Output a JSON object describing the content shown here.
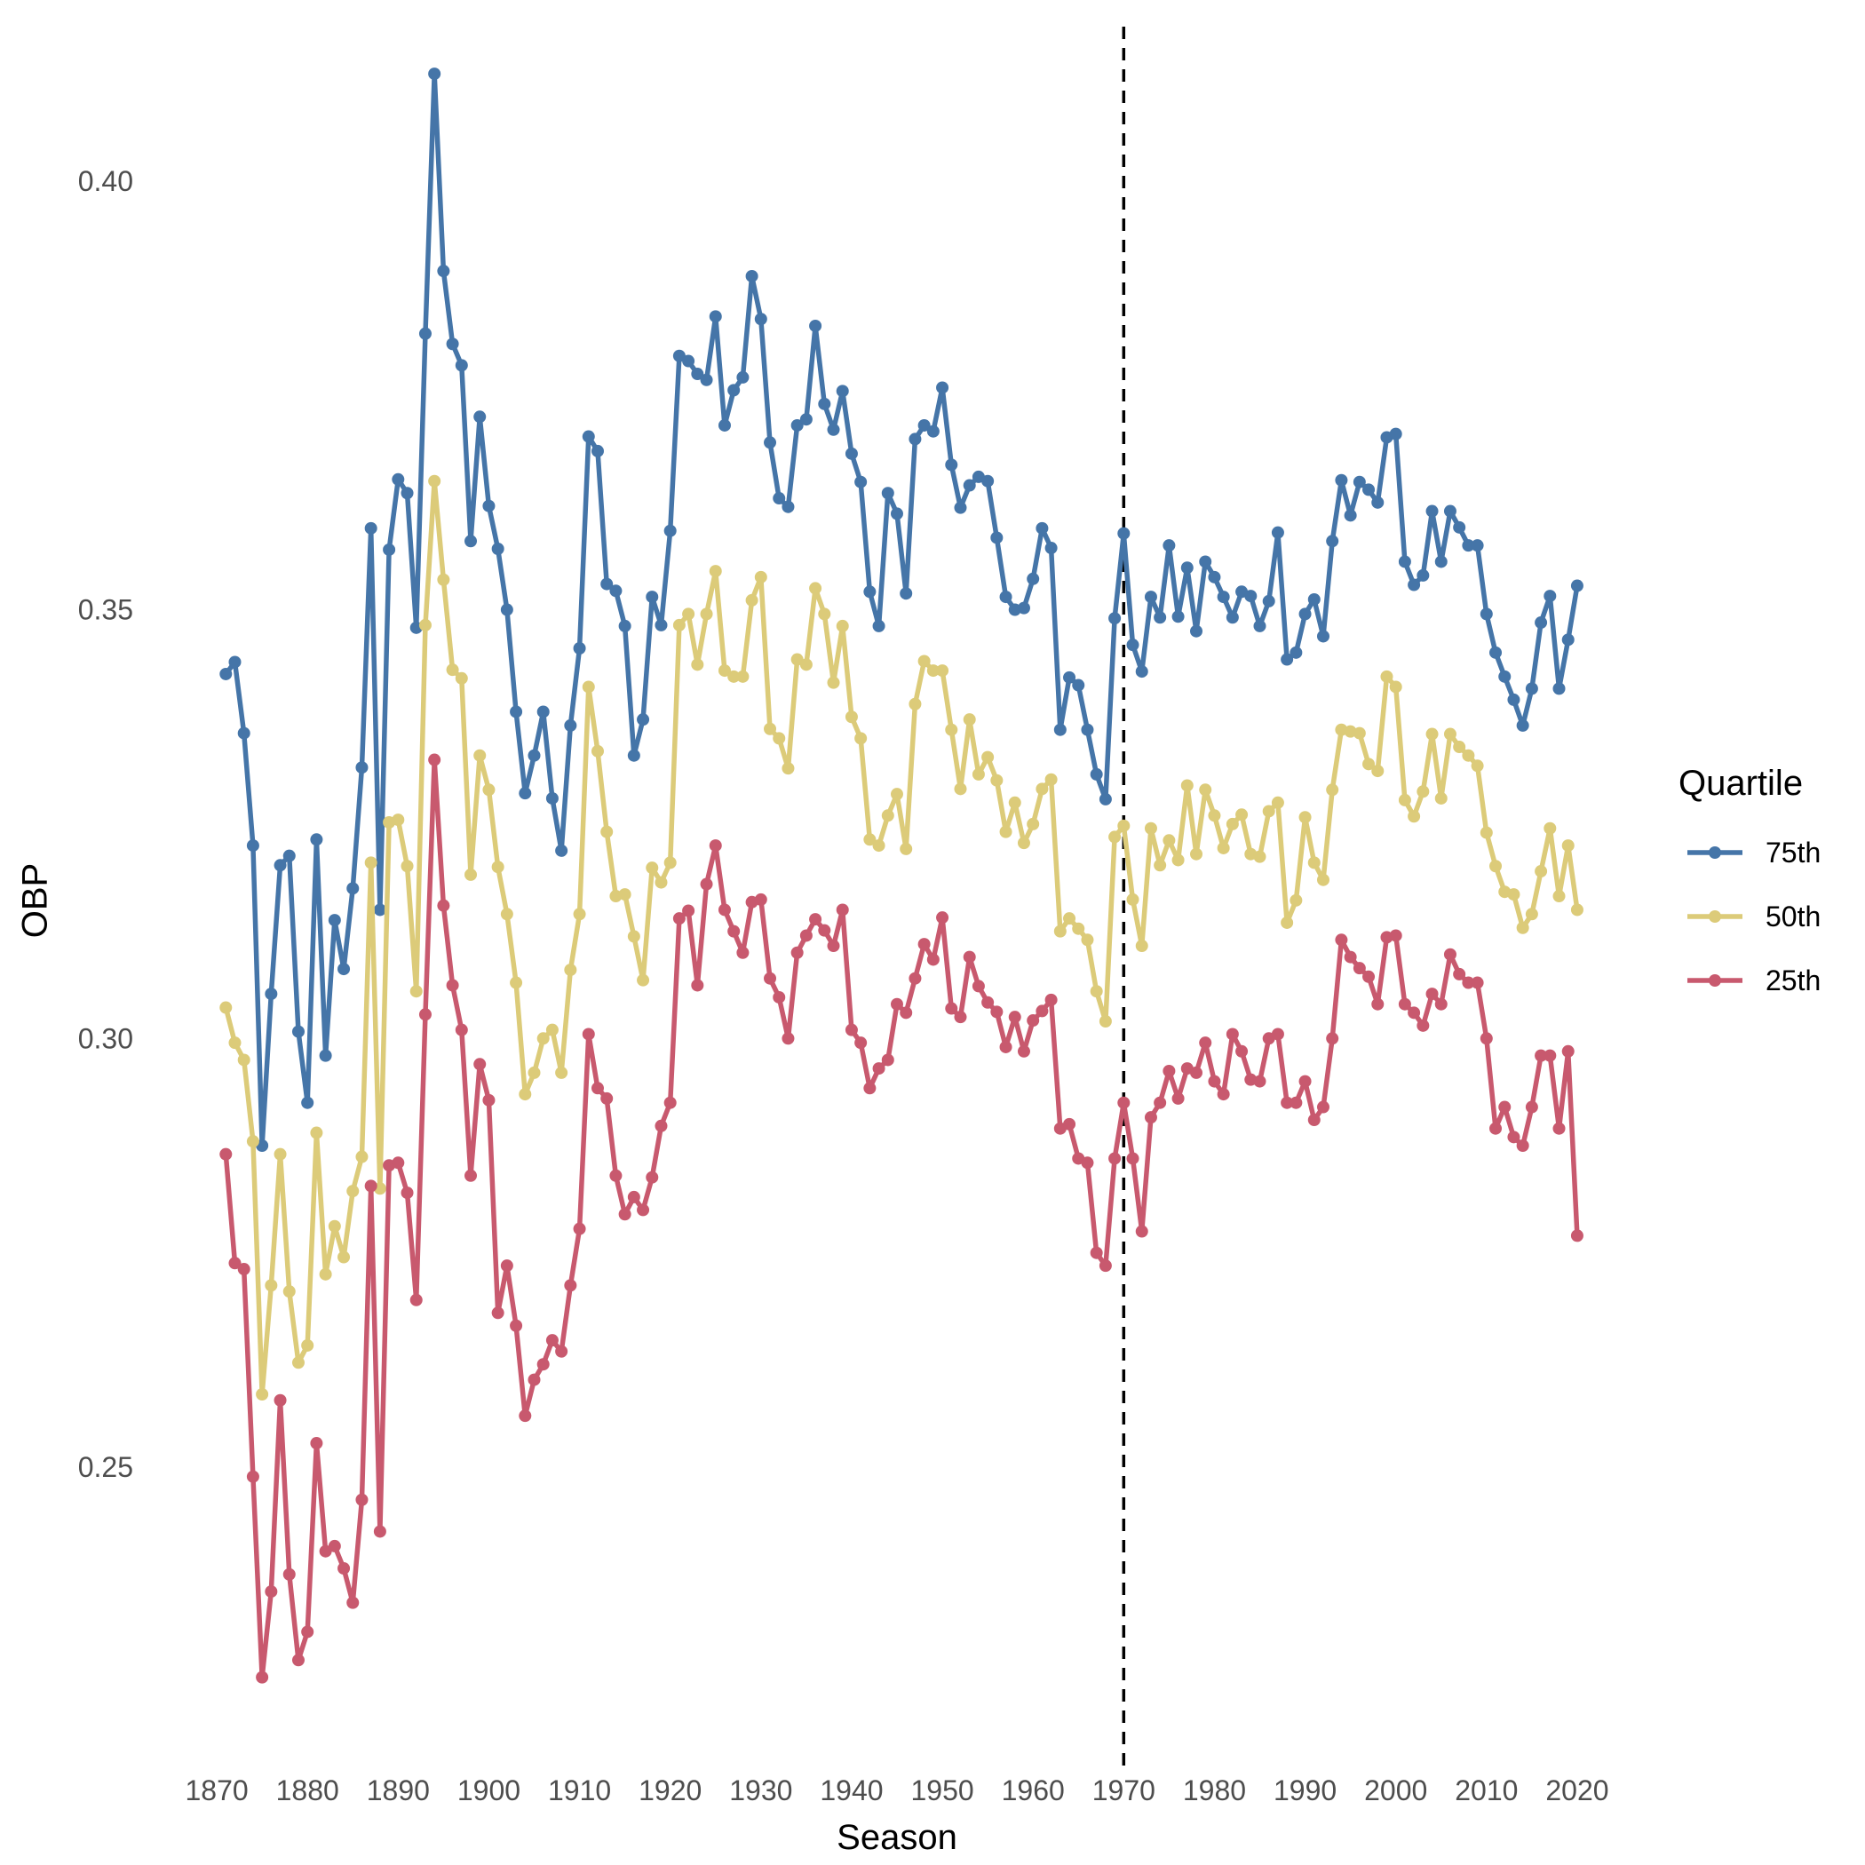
{
  "chart_data": {
    "type": "line",
    "title": "",
    "xlabel": "Season",
    "ylabel": "OBP",
    "xlim": [
      1865,
      2025
    ],
    "ylim": [
      0.215,
      0.418
    ],
    "x_ticks": [
      1870,
      1880,
      1890,
      1900,
      1910,
      1920,
      1930,
      1940,
      1950,
      1960,
      1970,
      1980,
      1990,
      2000,
      2010,
      2020
    ],
    "y_ticks": [
      0.25,
      0.3,
      0.35,
      0.4
    ],
    "y_tick_labels": [
      "0.25",
      "0.30",
      "0.35",
      "0.40"
    ],
    "grid": false,
    "legend": {
      "title": "Quartile",
      "position": "right"
    },
    "reference_line": {
      "x": 1970,
      "style": "dashed",
      "color": "#000000"
    },
    "x_start": 1871,
    "series": [
      {
        "name": "75th",
        "color": "#4575a8",
        "values": [
          0.3425,
          0.3439,
          0.3356,
          0.3225,
          0.2875,
          0.3052,
          0.3202,
          0.3213,
          0.3008,
          0.2925,
          0.3232,
          0.298,
          0.3138,
          0.3081,
          0.3175,
          0.3316,
          0.3595,
          0.315,
          0.357,
          0.3652,
          0.3636,
          0.3479,
          0.3822,
          0.4125,
          0.3895,
          0.381,
          0.3785,
          0.358,
          0.3725,
          0.3621,
          0.3571,
          0.35,
          0.3381,
          0.3286,
          0.333,
          0.3381,
          0.328,
          0.3219,
          0.3365,
          0.3455,
          0.3702,
          0.3685,
          0.353,
          0.3522,
          0.3481,
          0.333,
          0.3372,
          0.3515,
          0.3482,
          0.3592,
          0.3796,
          0.379,
          0.3775,
          0.3768,
          0.3842,
          0.3715,
          0.3756,
          0.3771,
          0.3889,
          0.3839,
          0.3695,
          0.363,
          0.362,
          0.3715,
          0.3722,
          0.3831,
          0.374,
          0.371,
          0.3755,
          0.3682,
          0.3649,
          0.3521,
          0.3481,
          0.3636,
          0.3612,
          0.3519,
          0.3699,
          0.3715,
          0.3708,
          0.3759,
          0.3669,
          0.3619,
          0.3645,
          0.3655,
          0.365,
          0.3584,
          0.3515,
          0.35,
          0.3502,
          0.3536,
          0.3595,
          0.3572,
          0.336,
          0.3421,
          0.3412,
          0.336,
          0.3308,
          0.3279,
          0.349,
          0.3589,
          0.3459,
          0.3428,
          0.3515,
          0.3491,
          0.3575,
          0.3492,
          0.3549,
          0.3475,
          0.3556,
          0.3538,
          0.3515,
          0.3491,
          0.3521,
          0.3516,
          0.3481,
          0.351,
          0.359,
          0.3442,
          0.345,
          0.3495,
          0.3512,
          0.3469,
          0.358,
          0.3651,
          0.361,
          0.3649,
          0.364,
          0.3625,
          0.3701,
          0.3705,
          0.3556,
          0.3529,
          0.354,
          0.3615,
          0.3556,
          0.3615,
          0.3596,
          0.3575,
          0.3575,
          0.3495,
          0.345,
          0.3422,
          0.3395,
          0.3365,
          0.3408,
          0.3485,
          0.3516,
          0.3408,
          0.3465,
          0.3528
        ]
      },
      {
        "name": "50th",
        "color": "#dccb79",
        "values": [
          0.3036,
          0.2995,
          0.2975,
          0.288,
          0.2585,
          0.2712,
          0.2865,
          0.2705,
          0.2622,
          0.2642,
          0.289,
          0.2725,
          0.2781,
          0.2745,
          0.2822,
          0.2862,
          0.3205,
          0.2825,
          0.3252,
          0.3255,
          0.3201,
          0.3055,
          0.3482,
          0.365,
          0.3535,
          0.343,
          0.342,
          0.3191,
          0.333,
          0.329,
          0.32,
          0.3145,
          0.3065,
          0.2935,
          0.296,
          0.3,
          0.301,
          0.296,
          0.308,
          0.3145,
          0.341,
          0.3335,
          0.3241,
          0.3166,
          0.3168,
          0.3119,
          0.3068,
          0.3199,
          0.3182,
          0.3205,
          0.3482,
          0.3495,
          0.3436,
          0.3495,
          0.3545,
          0.3429,
          0.3422,
          0.3422,
          0.3511,
          0.3538,
          0.3361,
          0.335,
          0.3315,
          0.3442,
          0.3436,
          0.3525,
          0.3495,
          0.3415,
          0.3481,
          0.3375,
          0.335,
          0.3232,
          0.3225,
          0.326,
          0.3285,
          0.3221,
          0.339,
          0.344,
          0.3429,
          0.3429,
          0.336,
          0.3291,
          0.3372,
          0.3308,
          0.3328,
          0.3301,
          0.3241,
          0.3275,
          0.3228,
          0.325,
          0.3291,
          0.3302,
          0.3125,
          0.314,
          0.3128,
          0.3115,
          0.3055,
          0.302,
          0.3235,
          0.3248,
          0.3162,
          0.3108,
          0.3245,
          0.3202,
          0.3231,
          0.3208,
          0.3295,
          0.3215,
          0.329,
          0.326,
          0.3222,
          0.325,
          0.3261,
          0.3215,
          0.3212,
          0.3265,
          0.3275,
          0.3135,
          0.3161,
          0.3258,
          0.3205,
          0.3185,
          0.329,
          0.336,
          0.3358,
          0.3356,
          0.332,
          0.3312,
          0.3422,
          0.341,
          0.3278,
          0.3259,
          0.3288,
          0.3355,
          0.328,
          0.3355,
          0.334,
          0.333,
          0.3318,
          0.324,
          0.3201,
          0.3171,
          0.3168,
          0.3129,
          0.3145,
          0.3195,
          0.3245,
          0.3166,
          0.3225,
          0.315
        ]
      },
      {
        "name": "25th",
        "color": "#c8596e",
        "values": [
          0.2865,
          0.2738,
          0.2731,
          0.2489,
          0.2255,
          0.2355,
          0.2578,
          0.2375,
          0.2275,
          0.2308,
          0.2528,
          0.2402,
          0.2408,
          0.2382,
          0.2342,
          0.2462,
          0.2828,
          0.2425,
          0.2852,
          0.2855,
          0.282,
          0.2695,
          0.3028,
          0.3325,
          0.3155,
          0.3062,
          0.301,
          0.284,
          0.297,
          0.2928,
          0.268,
          0.2735,
          0.2665,
          0.256,
          0.2602,
          0.262,
          0.2648,
          0.2635,
          0.2712,
          0.2778,
          0.3005,
          0.2942,
          0.293,
          0.284,
          0.2795,
          0.2815,
          0.28,
          0.2838,
          0.2898,
          0.2925,
          0.314,
          0.3149,
          0.3062,
          0.318,
          0.3225,
          0.315,
          0.3125,
          0.31,
          0.3159,
          0.3162,
          0.307,
          0.3048,
          0.3,
          0.31,
          0.312,
          0.3139,
          0.3126,
          0.3108,
          0.315,
          0.301,
          0.2995,
          0.2942,
          0.2965,
          0.2975,
          0.304,
          0.303,
          0.307,
          0.311,
          0.3092,
          0.3141,
          0.3035,
          0.3025,
          0.3095,
          0.3061,
          0.3042,
          0.3031,
          0.299,
          0.3025,
          0.2985,
          0.3021,
          0.3032,
          0.3045,
          0.2895,
          0.29,
          0.286,
          0.2855,
          0.275,
          0.2735,
          0.286,
          0.2925,
          0.286,
          0.2775,
          0.2908,
          0.2925,
          0.2962,
          0.293,
          0.2965,
          0.296,
          0.2995,
          0.295,
          0.2935,
          0.3005,
          0.2985,
          0.2952,
          0.295,
          0.3,
          0.3005,
          0.2925,
          0.2925,
          0.295,
          0.2905,
          0.292,
          0.3,
          0.3115,
          0.3095,
          0.3082,
          0.3072,
          0.304,
          0.3118,
          0.312,
          0.304,
          0.303,
          0.3015,
          0.3052,
          0.304,
          0.3098,
          0.3075,
          0.3065,
          0.3065,
          0.3,
          0.2895,
          0.292,
          0.2885,
          0.2875,
          0.292,
          0.298,
          0.298,
          0.2895,
          0.2985,
          0.277
        ]
      }
    ]
  }
}
